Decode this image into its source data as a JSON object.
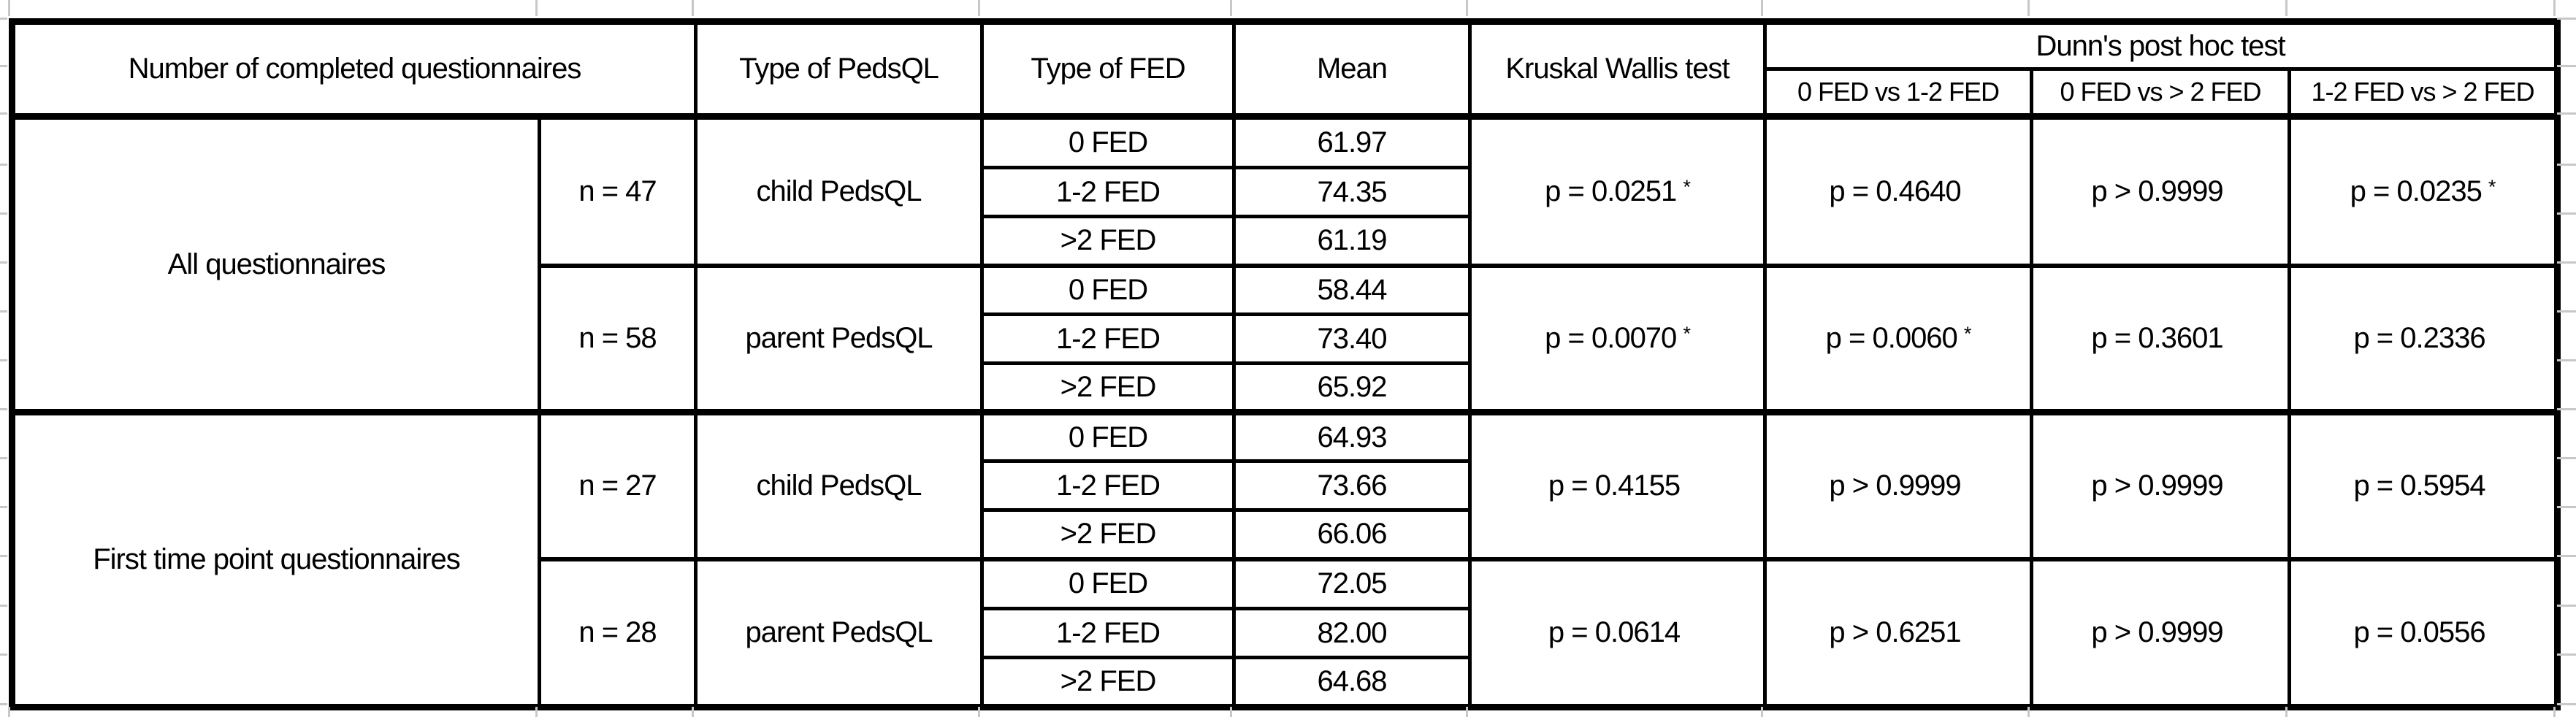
{
  "header": {
    "col_completed": "Number of completed questionnaires",
    "col_pedsql": "Type of PedsQL",
    "col_fed": "Type of FED",
    "col_mean": "Mean",
    "col_kruskal": "Kruskal Wallis test",
    "col_dunn": "Dunn's post hoc test",
    "dunn_subcols": {
      "0": "0 FED vs 1-2 FED",
      "1": "0 FED vs > 2 FED",
      "2": "1-2 FED vs > 2 FED"
    }
  },
  "groups": [
    {
      "label": "All questionnaires",
      "blocks": [
        {
          "n": "n = 47",
          "pedsql": "child PedsQL",
          "rows": [
            {
              "fed": "0 FED",
              "mean": "61.97"
            },
            {
              "fed": "1-2 FED",
              "mean": "74.35"
            },
            {
              "fed": ">2 FED",
              "mean": "61.19"
            }
          ],
          "kruskal": {
            "p": "p = 0.0251",
            "sig": "*"
          },
          "dunn": [
            {
              "p": "p = 0.4640",
              "sig": ""
            },
            {
              "p": "p > 0.9999",
              "sig": ""
            },
            {
              "p": "p = 0.0235",
              "sig": "*"
            }
          ]
        },
        {
          "n": "n = 58",
          "pedsql": "parent PedsQL",
          "rows": [
            {
              "fed": "0 FED",
              "mean": "58.44"
            },
            {
              "fed": "1-2 FED",
              "mean": "73.40"
            },
            {
              "fed": ">2 FED",
              "mean": "65.92"
            }
          ],
          "kruskal": {
            "p": "p = 0.0070",
            "sig": "*"
          },
          "dunn": [
            {
              "p": "p = 0.0060",
              "sig": "*"
            },
            {
              "p": "p = 0.3601",
              "sig": ""
            },
            {
              "p": "p = 0.2336",
              "sig": ""
            }
          ]
        }
      ]
    },
    {
      "label": "First time point questionnaires",
      "blocks": [
        {
          "n": "n = 27",
          "pedsql": "child PedsQL",
          "rows": [
            {
              "fed": "0 FED",
              "mean": "64.93"
            },
            {
              "fed": "1-2 FED",
              "mean": "73.66"
            },
            {
              "fed": ">2 FED",
              "mean": "66.06"
            }
          ],
          "kruskal": {
            "p": "p = 0.4155",
            "sig": ""
          },
          "dunn": [
            {
              "p": "p > 0.9999",
              "sig": ""
            },
            {
              "p": "p > 0.9999",
              "sig": ""
            },
            {
              "p": "p = 0.5954",
              "sig": ""
            }
          ]
        },
        {
          "n": "n = 28",
          "pedsql": "parent PedsQL",
          "rows": [
            {
              "fed": "0 FED",
              "mean": "72.05"
            },
            {
              "fed": "1-2 FED",
              "mean": "82.00"
            },
            {
              "fed": ">2 FED",
              "mean": "64.68"
            }
          ],
          "kruskal": {
            "p": "p = 0.0614",
            "sig": ""
          },
          "dunn": [
            {
              "p": "p > 0.6251",
              "sig": ""
            },
            {
              "p": "p > 0.9999",
              "sig": ""
            },
            {
              "p": "p = 0.0556",
              "sig": ""
            }
          ]
        }
      ]
    }
  ]
}
